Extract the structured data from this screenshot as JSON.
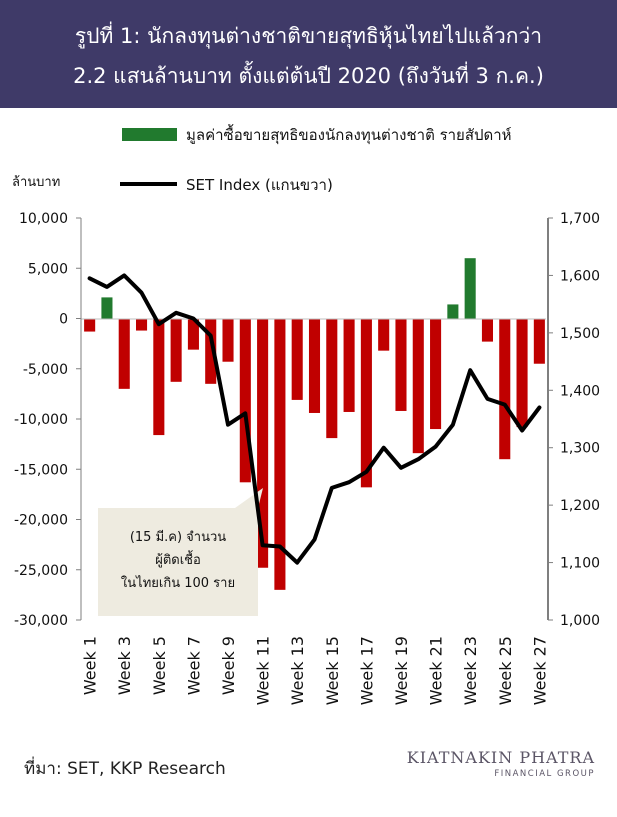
{
  "header": {
    "title_line1": "รูปที่ 1: นักลงทุนต่างชาติขายสุทธิหุ้นไทยไปแล้วกว่า",
    "title_line2": "2.2 แสนล้านบาท ตั้งแต่ต้นปี 2020 (ถึงวันที่ 3 ก.ค.)"
  },
  "source": "ที่มา: SET, KKP Research",
  "logo": {
    "line1": "KIATNAKIN PHATRA",
    "line2": "FINANCIAL GROUP"
  },
  "colors": {
    "header_bg": "#3f3a68",
    "bar_positive": "#217a2e",
    "bar_negative": "#c00000",
    "line": "#000000",
    "annotation_bg": "#eeebe0"
  },
  "chart_data": {
    "type": "bar+line",
    "left_axis": {
      "label": "ล้านบาท",
      "ylim": [
        -30000,
        10000
      ],
      "ticks": [
        "10,000",
        "5,000",
        "0",
        "-5,000",
        "-10,000",
        "-15,000",
        "-20,000",
        "-25,000",
        "-30,000"
      ]
    },
    "right_axis": {
      "ylim": [
        1000,
        1700
      ],
      "ticks": [
        "1,700",
        "1,600",
        "1,500",
        "1,400",
        "1,300",
        "1,200",
        "1,100",
        "1,000"
      ]
    },
    "categories": [
      "Week 1",
      "Week 2",
      "Week 3",
      "Week 4",
      "Week 5",
      "Week 6",
      "Week 7",
      "Week 8",
      "Week 9",
      "Week 10",
      "Week 11",
      "Week 12",
      "Week 13",
      "Week 14",
      "Week 15",
      "Week 16",
      "Week 17",
      "Week 18",
      "Week 19",
      "Week 20",
      "Week 21",
      "Week 22",
      "Week 23",
      "Week 24",
      "Week 25",
      "Week 26",
      "Week 27"
    ],
    "x_tick_labels": [
      "Week 1",
      "Week 3",
      "Week 5",
      "Week 7",
      "Week 9",
      "Week 11",
      "Week 13",
      "Week 15",
      "Week 17",
      "Week 19",
      "Week 21",
      "Week 23",
      "Week 25",
      "Week 27"
    ],
    "series": [
      {
        "name": "มูลค่าซื้อขายสุทธิของนักลงทุนต่างชาติ รายสัปดาห์",
        "type": "bar",
        "axis": "left",
        "values": [
          -1300,
          2100,
          -7000,
          -1200,
          -11600,
          -6300,
          -3100,
          -6500,
          -4300,
          -16300,
          -24800,
          -27000,
          -8100,
          -9400,
          -11900,
          -9300,
          -16800,
          -3200,
          -9200,
          -13400,
          -11000,
          1400,
          6000,
          -2300,
          -14000,
          -10800,
          -4500
        ]
      },
      {
        "name": "SET Index (แกนขวา)",
        "type": "line",
        "axis": "right",
        "values": [
          1595,
          1580,
          1600,
          1570,
          1515,
          1535,
          1525,
          1495,
          1340,
          1360,
          1130,
          1128,
          1100,
          1140,
          1230,
          1240,
          1258,
          1300,
          1265,
          1280,
          1302,
          1340,
          1435,
          1385,
          1375,
          1330,
          1370
        ]
      }
    ],
    "annotation": {
      "lines": [
        "(15 มี.ค) จำนวน",
        "ผู้ติดเชื้อ",
        "ในไทยเกิน 100 ราย"
      ]
    }
  }
}
